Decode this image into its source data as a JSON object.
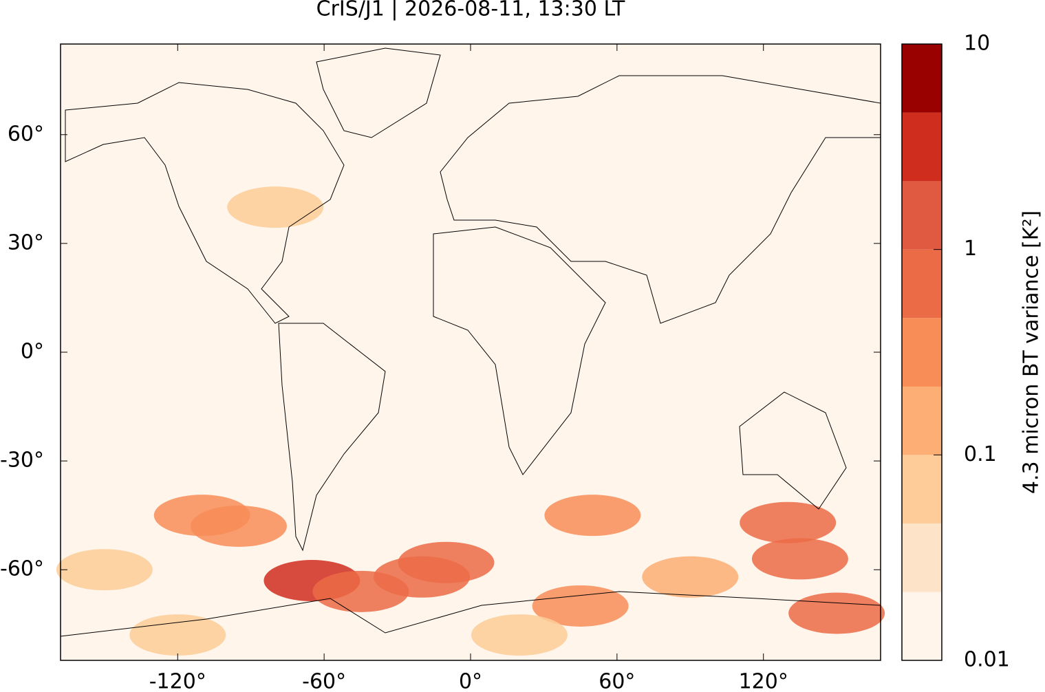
{
  "chart_data": {
    "type": "map",
    "title": "CrIS/J1 | 2026-08-11, 13:30 LT",
    "xlim": [
      -168,
      168
    ],
    "ylim": [
      -85,
      85
    ],
    "xticks": [
      {
        "value": -120,
        "label": "-120°"
      },
      {
        "value": -60,
        "label": "-60°"
      },
      {
        "value": 0,
        "label": "0°"
      },
      {
        "value": 60,
        "label": "60°"
      },
      {
        "value": 120,
        "label": "120°"
      }
    ],
    "yticks": [
      {
        "value": 60,
        "label": "60°"
      },
      {
        "value": 30,
        "label": "30°"
      },
      {
        "value": 0,
        "label": "0°"
      },
      {
        "value": -30,
        "label": "-30°"
      },
      {
        "value": -60,
        "label": "-60°"
      }
    ],
    "colorbar": {
      "label": "4.3 micron BT variance [K²]",
      "log": true,
      "levels": [
        0.01,
        0.0215,
        0.0464,
        0.1,
        0.215,
        0.464,
        1,
        2.15,
        4.64,
        10
      ],
      "colors": [
        "#fff5eb",
        "#fde4c9",
        "#fdcc98",
        "#fcae74",
        "#f88d58",
        "#ec6b47",
        "#e05a42",
        "#cf2d1e",
        "#990000"
      ],
      "ticks": [
        0.01,
        0.1,
        1,
        10
      ]
    },
    "field": {
      "lon": [
        -150,
        -110,
        -95,
        -65,
        -45,
        -20,
        -10,
        50,
        45,
        130,
        135,
        150,
        -80,
        20,
        90,
        -120
      ],
      "lat": [
        -60,
        -45,
        -48,
        -63,
        -66,
        -62,
        -58,
        -45,
        -70,
        -47,
        -57,
        -72,
        40,
        -78,
        -62,
        -78
      ],
      "values": [
        0.05,
        0.25,
        0.25,
        2.5,
        0.8,
        0.8,
        0.5,
        0.3,
        0.25,
        0.5,
        0.8,
        0.5,
        0.08,
        0.06,
        0.1,
        0.05
      ]
    }
  }
}
